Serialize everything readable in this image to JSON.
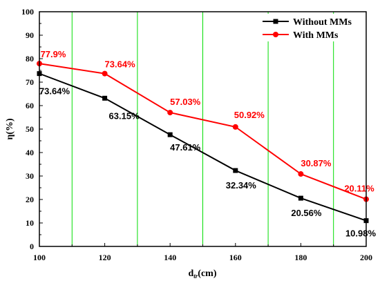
{
  "chart_data": {
    "type": "line",
    "xlabel_main": "d",
    "xlabel_sub": "tr",
    "xlabel_unit": "(cm)",
    "ylabel": "η(%)",
    "xlim": [
      100,
      200
    ],
    "ylim": [
      0,
      100
    ],
    "x_ticks": [
      100,
      120,
      140,
      160,
      180,
      200
    ],
    "y_ticks": [
      0,
      10,
      20,
      30,
      40,
      50,
      60,
      70,
      80,
      90,
      100
    ],
    "grid_x": [
      110,
      130,
      150,
      170,
      190
    ],
    "grid_color": "#00dd00",
    "legend_position": "top-right",
    "x": [
      100,
      120,
      140,
      160,
      180,
      200
    ],
    "series": [
      {
        "name": "Without MMs",
        "color": "#000000",
        "marker": "square",
        "values": [
          73.64,
          63.15,
          47.61,
          32.34,
          20.56,
          10.98
        ],
        "labels": [
          "73.64%",
          "63.15%",
          "47.61%",
          "32.34%",
          "20.56%",
          "10.98%"
        ]
      },
      {
        "name": "With MMs",
        "color": "#ff0000",
        "marker": "circle",
        "values": [
          77.9,
          73.64,
          57.03,
          50.92,
          30.87,
          20.11
        ],
        "labels": [
          "77.9%",
          "73.64%",
          "57.03%",
          "50.92%",
          "30.87%",
          "20.11%"
        ]
      }
    ]
  }
}
